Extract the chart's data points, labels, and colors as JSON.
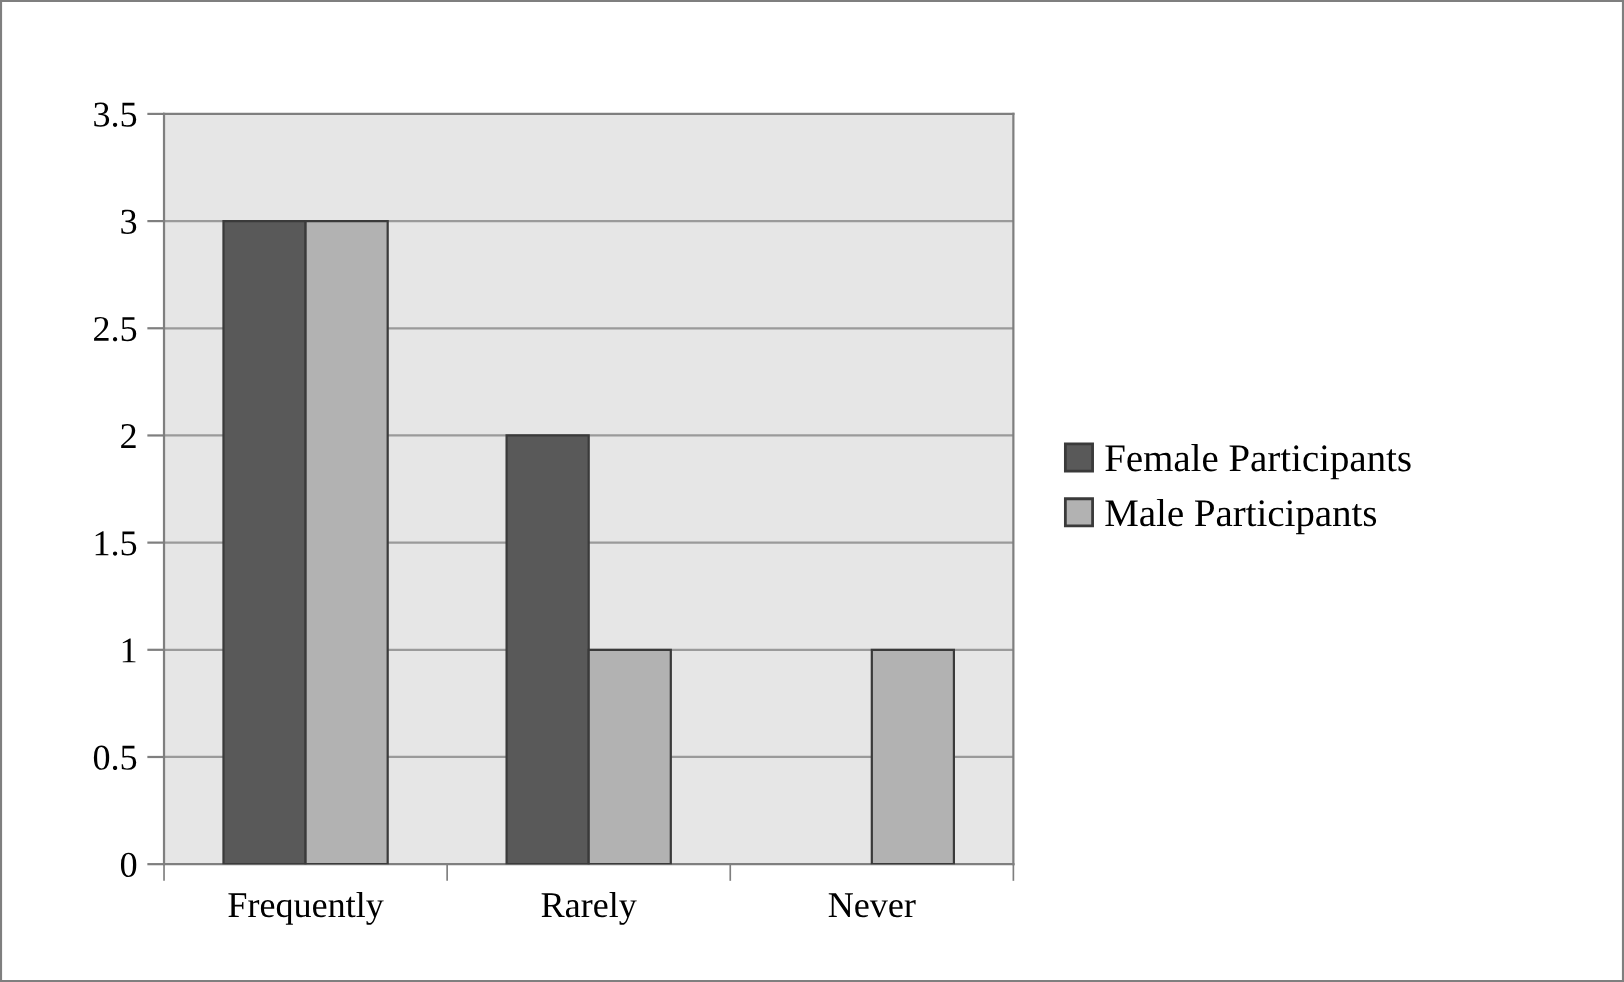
{
  "chart_data": {
    "type": "bar",
    "categories": [
      "Frequently",
      "Rarely",
      "Never"
    ],
    "series": [
      {
        "name": "Female Participants",
        "color": "#595959",
        "values": [
          3,
          2,
          0
        ]
      },
      {
        "name": "Male Participants",
        "color": "#b2b2b2",
        "values": [
          3,
          1,
          1
        ]
      }
    ],
    "ylim": [
      0,
      3.5
    ],
    "yticks": [
      0,
      0.5,
      1,
      1.5,
      2,
      2.5,
      3,
      3.5
    ],
    "grid": "y",
    "legend": "right"
  }
}
